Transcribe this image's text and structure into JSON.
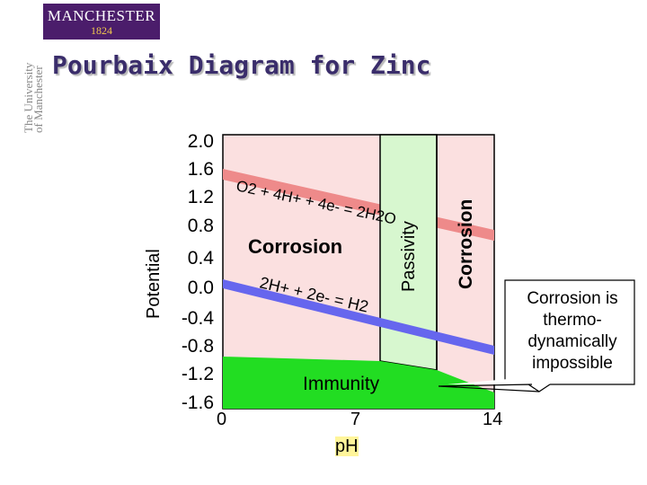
{
  "header": {
    "logo_name": "MANCHESTER",
    "logo_year": "1824",
    "side_text": "The University\nof Manchester"
  },
  "title": "Pourbaix Diagram for Zinc",
  "chart_data": {
    "type": "diagram",
    "xlabel": "pH",
    "ylabel": "Potential",
    "xlim": [
      0,
      14
    ],
    "ylim": [
      -1.6,
      2.0
    ],
    "y_ticks": [
      "2.0",
      "1.6",
      "1.2",
      "0.8",
      "0.4",
      "0.0",
      "-0.4",
      "-0.8",
      "-1.2",
      "-1.6"
    ],
    "x_ticks": [
      "0",
      "7",
      "14"
    ],
    "regions": [
      {
        "label": "Corrosion",
        "color": "#fbe0e0"
      },
      {
        "label": "Passivity",
        "color": "#d7f7cf"
      },
      {
        "label": "Corrosion",
        "color": "#fbe0e0"
      },
      {
        "label": "Immunity",
        "color": "#22dd22"
      }
    ],
    "lines": [
      {
        "label": "O2 + 4H+ + 4e- = 2H2O",
        "color": "#ee8a8a"
      },
      {
        "label": "2H+ + 2e- = H2",
        "color": "#6666ee"
      }
    ],
    "callout": "Corrosion is thermo-dynamically impossible",
    "colors": {
      "corrosion": "#fbe0e0",
      "passivity": "#d7f7cf",
      "immunity": "#22dd22",
      "oxygen_line": "#ee8a8a",
      "hydrogen_line": "#6666ee"
    }
  }
}
